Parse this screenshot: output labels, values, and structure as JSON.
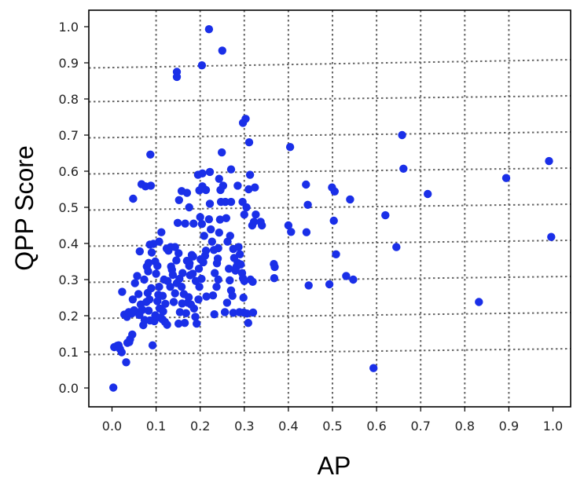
{
  "chart_data": {
    "type": "scatter",
    "xlabel": "AP",
    "ylabel": "QPP Score",
    "xlim": [
      -0.045,
      1.045
    ],
    "ylim": [
      -0.05,
      1.05
    ],
    "x_ticks": [
      "0.0",
      "0.1",
      "0.2",
      "0.3",
      "0.4",
      "0.5",
      "0.6",
      "0.7",
      "0.8",
      "0.9",
      "1.0"
    ],
    "y_ticks": [
      "0.0",
      "0.1",
      "0.2",
      "0.3",
      "0.4",
      "0.5",
      "0.6",
      "0.7",
      "0.8",
      "0.9",
      "1.0"
    ],
    "grid": "dotted, gray; slightly skewed lines",
    "marker_color": "#1a2fe8",
    "series": [
      {
        "points": [
          [
            0.003,
            0.001
          ],
          [
            0.005,
            0.113
          ],
          [
            0.012,
            0.117
          ],
          [
            0.018,
            0.108
          ],
          [
            0.022,
            0.099
          ],
          [
            0.015,
            0.118
          ],
          [
            0.032,
            0.071
          ],
          [
            0.035,
            0.125
          ],
          [
            0.041,
            0.135
          ],
          [
            0.046,
            0.148
          ],
          [
            0.039,
            0.127
          ],
          [
            0.028,
            0.203
          ],
          [
            0.023,
            0.266
          ],
          [
            0.034,
            0.197
          ],
          [
            0.038,
            0.21
          ],
          [
            0.045,
            0.206
          ],
          [
            0.05,
            0.215
          ],
          [
            0.047,
            0.245
          ],
          [
            0.052,
            0.29
          ],
          [
            0.057,
            0.31
          ],
          [
            0.06,
            0.26
          ],
          [
            0.065,
            0.231
          ],
          [
            0.067,
            0.215
          ],
          [
            0.071,
            0.174
          ],
          [
            0.074,
            0.188
          ],
          [
            0.062,
            0.202
          ],
          [
            0.069,
            0.216
          ],
          [
            0.078,
            0.238
          ],
          [
            0.081,
            0.263
          ],
          [
            0.085,
            0.245
          ],
          [
            0.089,
            0.276
          ],
          [
            0.092,
            0.118
          ],
          [
            0.096,
            0.185
          ],
          [
            0.098,
            0.201
          ],
          [
            0.086,
            0.187
          ],
          [
            0.083,
            0.214
          ],
          [
            0.073,
            0.3
          ],
          [
            0.082,
            0.323
          ],
          [
            0.079,
            0.336
          ],
          [
            0.083,
            0.346
          ],
          [
            0.09,
            0.375
          ],
          [
            0.086,
            0.397
          ],
          [
            0.063,
            0.378
          ],
          [
            0.094,
            0.399
          ],
          [
            0.1,
            0.316
          ],
          [
            0.107,
            0.28
          ],
          [
            0.105,
            0.258
          ],
          [
            0.103,
            0.24
          ],
          [
            0.108,
            0.22
          ],
          [
            0.11,
            0.195
          ],
          [
            0.114,
            0.19
          ],
          [
            0.12,
            0.183
          ],
          [
            0.125,
            0.175
          ],
          [
            0.116,
            0.212
          ],
          [
            0.121,
            0.233
          ],
          [
            0.115,
            0.255
          ],
          [
            0.118,
            0.3
          ],
          [
            0.126,
            0.296
          ],
          [
            0.124,
            0.386
          ],
          [
            0.107,
            0.405
          ],
          [
            0.112,
            0.431
          ],
          [
            0.136,
            0.327
          ],
          [
            0.138,
            0.313
          ],
          [
            0.132,
            0.28
          ],
          [
            0.14,
            0.238
          ],
          [
            0.143,
            0.262
          ],
          [
            0.147,
            0.29
          ],
          [
            0.146,
            0.353
          ],
          [
            0.143,
            0.39
          ],
          [
            0.151,
            0.373
          ],
          [
            0.153,
            0.302
          ],
          [
            0.158,
            0.28
          ],
          [
            0.163,
            0.26
          ],
          [
            0.159,
            0.234
          ],
          [
            0.154,
            0.21
          ],
          [
            0.151,
            0.178
          ],
          [
            0.165,
            0.18
          ],
          [
            0.168,
            0.207
          ],
          [
            0.172,
            0.236
          ],
          [
            0.174,
            0.251
          ],
          [
            0.177,
            0.312
          ],
          [
            0.175,
            0.338
          ],
          [
            0.181,
            0.368
          ],
          [
            0.183,
            0.316
          ],
          [
            0.186,
            0.22
          ],
          [
            0.189,
            0.197
          ],
          [
            0.192,
            0.178
          ],
          [
            0.179,
            0.231
          ],
          [
            0.196,
            0.245
          ],
          [
            0.198,
            0.28
          ],
          [
            0.197,
            0.33
          ],
          [
            0.201,
            0.356
          ],
          [
            0.203,
            0.302
          ],
          [
            0.207,
            0.348
          ],
          [
            0.211,
            0.366
          ],
          [
            0.213,
            0.38
          ],
          [
            0.209,
            0.421
          ],
          [
            0.204,
            0.454
          ],
          [
            0.2,
            0.473
          ],
          [
            0.198,
            0.547
          ],
          [
            0.205,
            0.558
          ],
          [
            0.213,
            0.548
          ],
          [
            0.222,
            0.51
          ],
          [
            0.22,
            0.467
          ],
          [
            0.224,
            0.439
          ],
          [
            0.227,
            0.405
          ],
          [
            0.231,
            0.382
          ],
          [
            0.233,
            0.318
          ],
          [
            0.237,
            0.28
          ],
          [
            0.232,
            0.204
          ],
          [
            0.238,
            0.345
          ],
          [
            0.24,
            0.358
          ],
          [
            0.241,
            0.387
          ],
          [
            0.243,
            0.43
          ],
          [
            0.245,
            0.466
          ],
          [
            0.247,
            0.515
          ],
          [
            0.246,
            0.548
          ],
          [
            0.249,
            0.652
          ],
          [
            0.243,
            0.579
          ],
          [
            0.252,
            0.56
          ],
          [
            0.257,
            0.515
          ],
          [
            0.259,
            0.47
          ],
          [
            0.262,
            0.405
          ],
          [
            0.265,
            0.33
          ],
          [
            0.267,
            0.298
          ],
          [
            0.27,
            0.27
          ],
          [
            0.273,
            0.255
          ],
          [
            0.268,
            0.421
          ],
          [
            0.275,
            0.385
          ],
          [
            0.277,
            0.36
          ],
          [
            0.28,
            0.325
          ],
          [
            0.282,
            0.335
          ],
          [
            0.285,
            0.346
          ],
          [
            0.287,
            0.39
          ],
          [
            0.29,
            0.37
          ],
          [
            0.292,
            0.342
          ],
          [
            0.295,
            0.318
          ],
          [
            0.297,
            0.304
          ],
          [
            0.3,
            0.296
          ],
          [
            0.298,
            0.25
          ],
          [
            0.299,
            0.209
          ],
          [
            0.306,
            0.206
          ],
          [
            0.309,
            0.18
          ],
          [
            0.314,
            0.3
          ],
          [
            0.319,
            0.294
          ],
          [
            0.32,
            0.209
          ],
          [
            0.296,
            0.515
          ],
          [
            0.3,
            0.48
          ],
          [
            0.305,
            0.5
          ],
          [
            0.31,
            0.55
          ],
          [
            0.313,
            0.59
          ],
          [
            0.297,
            0.734
          ],
          [
            0.303,
            0.745
          ],
          [
            0.311,
            0.68
          ],
          [
            0.324,
            0.555
          ],
          [
            0.326,
            0.48
          ],
          [
            0.318,
            0.45
          ],
          [
            0.322,
            0.46
          ],
          [
            0.337,
            0.46
          ],
          [
            0.34,
            0.45
          ],
          [
            0.367,
            0.343
          ],
          [
            0.369,
            0.335
          ],
          [
            0.368,
            0.304
          ],
          [
            0.27,
            0.605
          ],
          [
            0.27,
            0.515
          ],
          [
            0.285,
            0.56
          ],
          [
            0.205,
            0.594
          ],
          [
            0.222,
            0.598
          ],
          [
            0.195,
            0.59
          ],
          [
            0.17,
            0.54
          ],
          [
            0.158,
            0.545
          ],
          [
            0.152,
            0.52
          ],
          [
            0.175,
            0.5
          ],
          [
            0.185,
            0.455
          ],
          [
            0.166,
            0.455
          ],
          [
            0.149,
            0.457
          ],
          [
            0.176,
            0.345
          ],
          [
            0.184,
            0.364
          ],
          [
            0.19,
            0.296
          ],
          [
            0.17,
            0.352
          ],
          [
            0.133,
            0.39
          ],
          [
            0.128,
            0.38
          ],
          [
            0.134,
            0.336
          ],
          [
            0.103,
            0.338
          ],
          [
            0.098,
            0.35
          ],
          [
            0.088,
            0.56
          ],
          [
            0.067,
            0.564
          ],
          [
            0.076,
            0.558
          ],
          [
            0.048,
            0.524
          ],
          [
            0.087,
            0.646
          ],
          [
            0.147,
            0.875
          ],
          [
            0.147,
            0.861
          ],
          [
            0.204,
            0.893
          ],
          [
            0.22,
            0.993
          ],
          [
            0.25,
            0.934
          ],
          [
            0.404,
            0.667
          ],
          [
            0.4,
            0.45
          ],
          [
            0.406,
            0.432
          ],
          [
            0.44,
            0.563
          ],
          [
            0.444,
            0.507
          ],
          [
            0.441,
            0.431
          ],
          [
            0.446,
            0.284
          ],
          [
            0.493,
            0.287
          ],
          [
            0.499,
            0.555
          ],
          [
            0.505,
            0.544
          ],
          [
            0.503,
            0.463
          ],
          [
            0.508,
            0.37
          ],
          [
            0.531,
            0.31
          ],
          [
            0.54,
            0.522
          ],
          [
            0.547,
            0.3
          ],
          [
            0.593,
            0.055
          ],
          [
            0.62,
            0.478
          ],
          [
            0.645,
            0.39
          ],
          [
            0.658,
            0.7
          ],
          [
            0.661,
            0.607
          ],
          [
            0.716,
            0.537
          ],
          [
            0.832,
            0.238
          ],
          [
            0.894,
            0.581
          ],
          [
            0.991,
            0.628
          ],
          [
            0.996,
            0.418
          ],
          [
            0.241,
            0.3
          ],
          [
            0.16,
            0.318
          ],
          [
            0.261,
            0.236
          ],
          [
            0.256,
            0.21
          ],
          [
            0.275,
            0.208
          ],
          [
            0.289,
            0.21
          ],
          [
            0.214,
            0.253
          ],
          [
            0.229,
            0.256
          ]
        ]
      }
    ]
  }
}
